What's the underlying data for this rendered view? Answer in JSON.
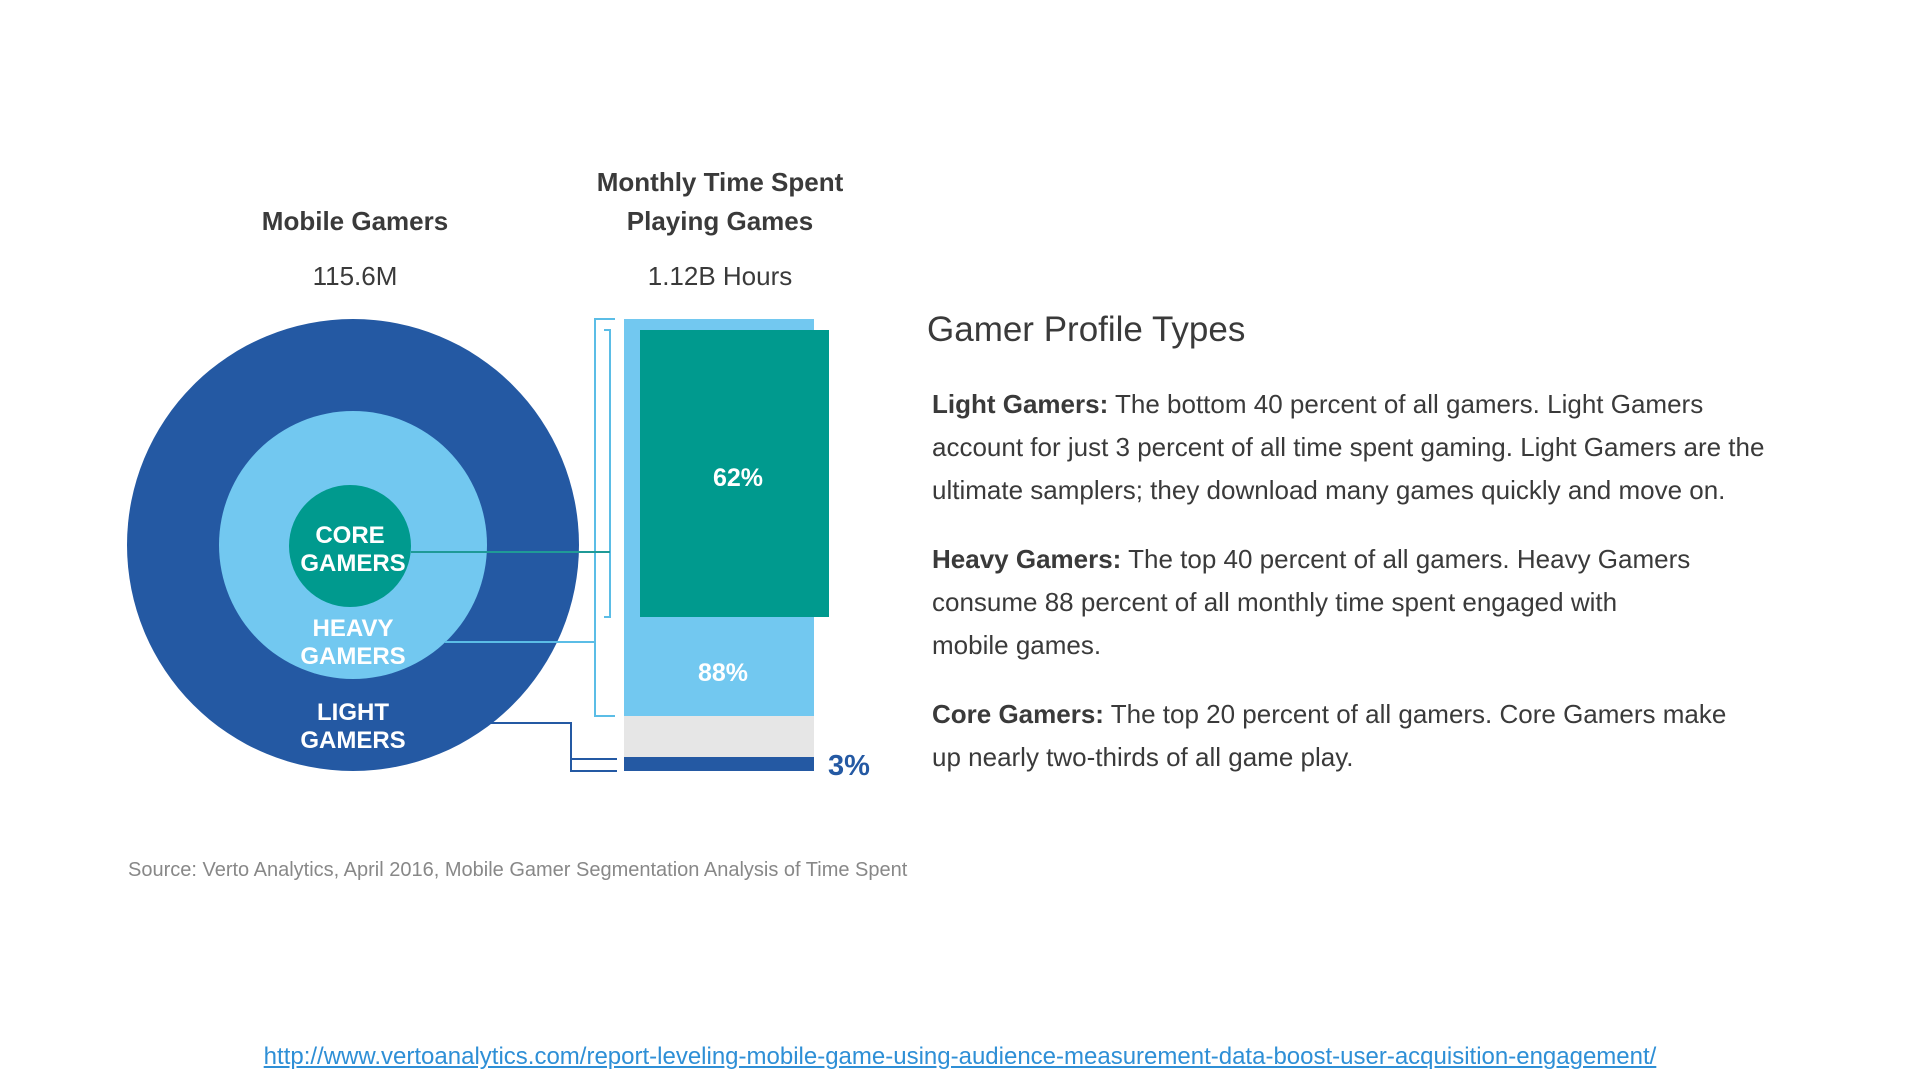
{
  "headings": {
    "gamers_title": "Mobile Gamers",
    "gamers_value": "115.6M",
    "time_title_line1": "Monthly Time Spent",
    "time_title_line2": "Playing Games",
    "time_value": "1.12B Hours"
  },
  "colors": {
    "light": "#2459a3",
    "heavy": "#72c8f0",
    "core": "#009a8e",
    "gray": "#e6e6e6",
    "bracket": "#5bbde6",
    "connector_core": "#1f9a97",
    "connector_light": "#2459a3",
    "label_3pct": "#2459a3",
    "text": "#3a3a3a",
    "source": "#888888",
    "link": "#2e8fd6"
  },
  "chart_data": {
    "type": "nested-circles-and-stacked-bar",
    "segments": [
      {
        "name": "CORE GAMERS",
        "circle_label_line1": "CORE",
        "circle_label_line2": "GAMERS",
        "share_of_gamers_pct": 20,
        "share_of_time_pct": 62,
        "time_label": "62%"
      },
      {
        "name": "HEAVY GAMERS",
        "circle_label_line1": "HEAVY",
        "circle_label_line2": "GAMERS",
        "share_of_gamers_pct": 40,
        "share_of_time_pct": 88,
        "time_label": "88%"
      },
      {
        "name": "LIGHT GAMERS",
        "circle_label_line1": "LIGHT",
        "circle_label_line2": "GAMERS",
        "share_of_gamers_pct": 40,
        "share_of_time_pct": 3,
        "time_label": "3%"
      }
    ]
  },
  "profiles": {
    "title": "Gamer Profile Types",
    "items": [
      {
        "term": "Light Gamers:",
        "lines": [
          "The bottom 40 percent of all gamers. Light Gamers",
          "account for just 3 percent of all time spent gaming. Light Gamers are the",
          "ultimate samplers; they download many games quickly and move on."
        ]
      },
      {
        "term": "Heavy Gamers:",
        "lines": [
          "The top 40 percent of all gamers. Heavy Gamers",
          "consume 88 percent of all monthly time spent engaged with",
          "mobile games."
        ]
      },
      {
        "term": "Core Gamers:",
        "lines": [
          "The top 20 percent of all gamers. Core Gamers make",
          "up nearly two-thirds of all game play."
        ]
      }
    ]
  },
  "source": "Source: Verto Analytics, April 2016, Mobile Gamer Segmentation Analysis of Time Spent",
  "link_url": "http://www.vertoanalytics.com/report-leveling-mobile-game-using-audience-measurement-data-boost-user-acquisition-engagement/"
}
